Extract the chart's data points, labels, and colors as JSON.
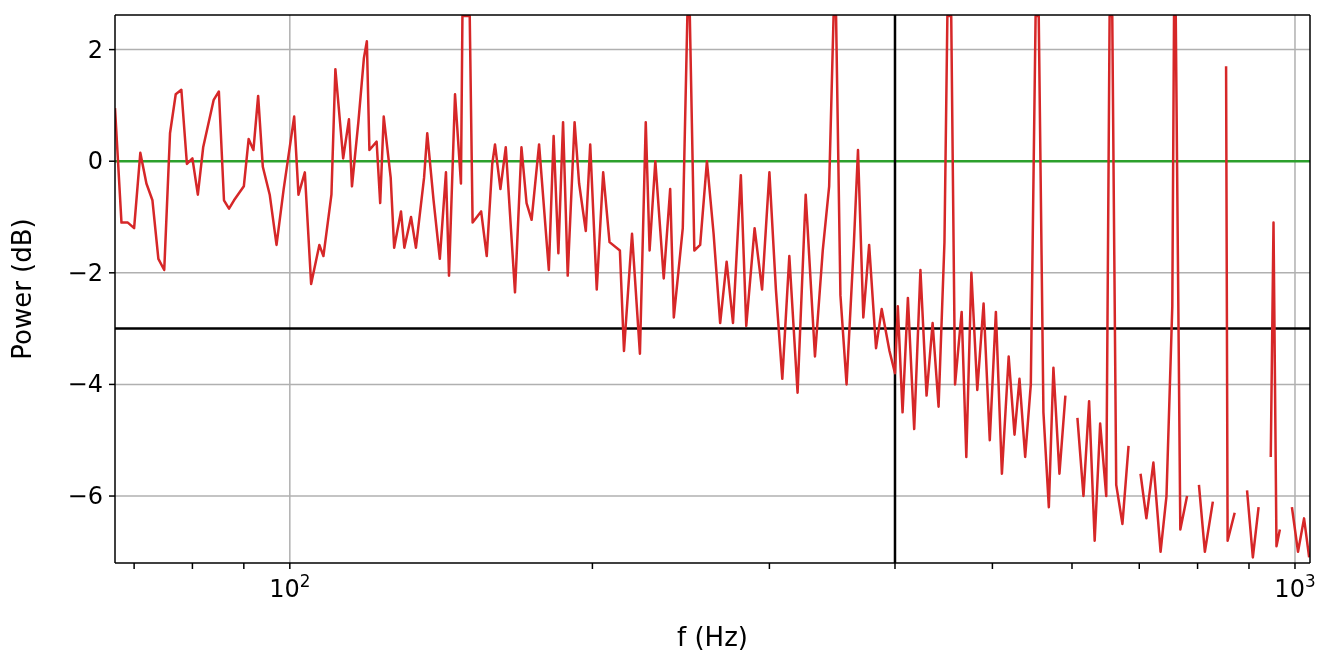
{
  "chart_data": {
    "type": "line",
    "xlabel": "f (Hz)",
    "ylabel": "Power (dB)",
    "log": "x",
    "grid": true,
    "legend": false,
    "marker": "none",
    "line_style": "solid",
    "xlim": [
      67,
      1035
    ],
    "ylim": [
      -7.2,
      2.62
    ],
    "xticks": [
      {
        "value": 70,
        "label": null
      },
      {
        "value": 80,
        "label": null
      },
      {
        "value": 90,
        "label": null
      },
      {
        "value": 100,
        "label": "10$^{2}$"
      },
      {
        "value": 200,
        "label": null
      },
      {
        "value": 300,
        "label": null
      },
      {
        "value": 400,
        "label": null
      },
      {
        "value": 500,
        "label": null
      },
      {
        "value": 600,
        "label": null
      },
      {
        "value": 700,
        "label": null
      },
      {
        "value": 800,
        "label": null
      },
      {
        "value": 900,
        "label": null
      },
      {
        "value": 1000,
        "label": "10$^{3}$"
      }
    ],
    "yticks": [
      -6,
      -4,
      -2,
      0,
      2
    ],
    "ref_lines": [
      {
        "axis": "y",
        "value": 0,
        "color": "#2ca02c"
      },
      {
        "axis": "y",
        "value": -3,
        "color": "#000000"
      },
      {
        "axis": "x",
        "value": 400,
        "color": "#000000"
      }
    ],
    "series": [
      {
        "color": "#d62728",
        "x": [
          67,
          68,
          69,
          70,
          71,
          72,
          73,
          74,
          75,
          76,
          77,
          78,
          79,
          80,
          81,
          82,
          84,
          85,
          86,
          87,
          88,
          90,
          91,
          92,
          93,
          94,
          95.5,
          97,
          98.6,
          101,
          102,
          103.5,
          105,
          107,
          108,
          110,
          111,
          113,
          114.5,
          115.3,
          117,
          118.5,
          119.3,
          120,
          122,
          123,
          124,
          126,
          127,
          129,
          130,
          132,
          133.5,
          136,
          137,
          139,
          141,
          143,
          144,
          146,
          148,
          148.5,
          151,
          152,
          155,
          157,
          159,
          160,
          162,
          164,
          167.5,
          170,
          172,
          174,
          177,
          181,
          183,
          185,
          187,
          189,
          192,
          194,
          197,
          199,
          202,
          205,
          208,
          213,
          215,
          219,
          223,
          226,
          228,
          231,
          235.5,
          239,
          241,
          246,
          248.6,
          250,
          252.6,
          256,
          260,
          264,
          268,
          272,
          276,
          281,
          284.5,
          290,
          295,
          300,
          304.5,
          309,
          314,
          320,
          326,
          333,
          339,
          344,
          347.5,
          349.5,
          353,
          358,
          364,
          367.5,
          372,
          377,
          383,
          388,
          395,
          400,
          402.6,
          407,
          412,
          418,
          424,
          430,
          436,
          442,
          448,
          451,
          455,
          459,
          466,
          471,
          476.5,
          483,
          490,
          497,
          504,
          511,
          519,
          526,
          532,
          539,
          546,
          552,
          556,
          562,
          569,
          575,
          583,
          591,
          599,
          607.5,
          616,
          624,
          632,
          640,
          649,
          654,
          658,
          664,
          673.5,
          683,
          692,
          702,
          711.5,
          723,
          735,
          745,
          755,
          758,
          761,
          769,
          781,
          792,
          802.5,
          813.5,
          828.5,
          844,
          854,
          857,
          871,
          883.5,
          896,
          908,
          920,
          933,
          946,
          952,
          958.5,
          966,
          980,
          993,
          1007,
          1021,
          1033
        ],
        "values": [
          0.95,
          -1.1,
          -1.1,
          -1.2,
          0.15,
          -0.4,
          -0.7,
          -1.75,
          -1.95,
          0.5,
          1.2,
          1.28,
          -0.05,
          0.05,
          -0.6,
          0.25,
          1.1,
          1.25,
          -0.7,
          -0.85,
          -0.7,
          -0.45,
          0.4,
          0.2,
          1.17,
          -0.1,
          -0.6,
          -1.5,
          -0.5,
          0.8,
          -0.6,
          -0.2,
          -2.2,
          -1.5,
          -1.7,
          -0.6,
          1.65,
          0.05,
          0.75,
          -0.45,
          0.7,
          1.85,
          2.15,
          0.2,
          0.35,
          -0.75,
          0.8,
          -0.3,
          -1.55,
          -0.9,
          -1.55,
          -1.0,
          -1.55,
          -0.3,
          0.5,
          -0.7,
          -1.75,
          -0.2,
          -2.05,
          1.2,
          -0.4,
          2.6,
          2.6,
          -1.1,
          -0.9,
          -1.7,
          -0.05,
          0.3,
          -0.5,
          0.25,
          -2.35,
          0.25,
          -0.75,
          -1.05,
          0.3,
          -1.95,
          0.45,
          -1.65,
          0.7,
          -2.05,
          0.7,
          -0.4,
          -1.25,
          0.3,
          -2.3,
          -0.2,
          -1.45,
          -1.6,
          -3.4,
          -1.3,
          -3.45,
          0.7,
          -1.6,
          0,
          -2.1,
          -0.5,
          -2.8,
          -1.2,
          2.6,
          2.6,
          -1.6,
          -1.5,
          0,
          -1.3,
          -2.9,
          -1.8,
          -2.9,
          -0.25,
          -2.95,
          -1.2,
          -2.3,
          -0.2,
          -2.3,
          -3.9,
          -1.7,
          -4.15,
          -0.6,
          -3.5,
          -1.6,
          -0.45,
          2.6,
          2.6,
          -2.4,
          -4.0,
          -1.5,
          0.2,
          -2.8,
          -1.5,
          -3.35,
          -2.65,
          -3.4,
          -3.8,
          -2.6,
          -4.5,
          -2.45,
          -4.8,
          -1.95,
          -4.2,
          -2.9,
          -4.4,
          -1.45,
          2.6,
          2.6,
          -4.0,
          -2.7,
          -5.3,
          -2.0,
          -4.1,
          -2.55,
          -5.0,
          -2.7,
          -5.6,
          -3.5,
          -4.9,
          -3.9,
          -5.3,
          -4.0,
          2.6,
          2.6,
          -4.5,
          -6.2,
          -3.7,
          -5.6,
          -4.2,
          null,
          -4.6,
          -6.0,
          -4.3,
          -6.8,
          -4.7,
          -6.0,
          2.6,
          2.6,
          -5.8,
          -6.5,
          -5.1,
          null,
          -5.6,
          -6.4,
          -5.4,
          -7.0,
          -6.0,
          -2.6,
          2.6,
          2.6,
          -6.6,
          -6.0,
          null,
          -5.8,
          -7.0,
          -6.1,
          null,
          1.7,
          -6.8,
          -6.3,
          null,
          -5.9,
          -7.1,
          -6.2,
          null,
          -5.3,
          -1.1,
          -6.9,
          -6.6,
          null,
          -6.2,
          -7.0,
          -6.4,
          -7.1
        ]
      }
    ]
  }
}
